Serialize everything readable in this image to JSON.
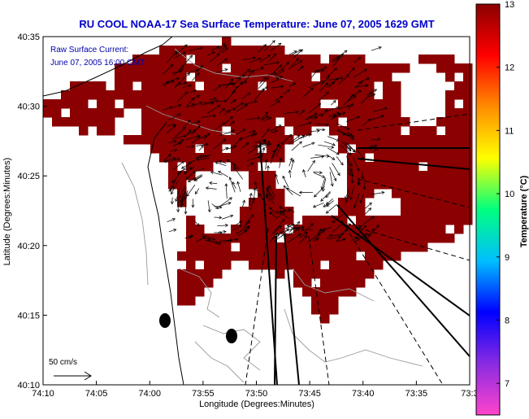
{
  "chart_data": {
    "type": "heatmap",
    "title": "RU COOL  NOAA-17  Sea Surface Temperature:  June 07, 2005 1629 GMT",
    "subtitle_lines": [
      "Raw Surface Current:",
      "June 07, 2005 16:00 GMT"
    ],
    "xlabel": "Longitude (Degrees:Minutes)",
    "ylabel": "Latitude (Degrees:Minutes)",
    "x_ticks": [
      "74:10",
      "74:05",
      "74:00",
      "73:55",
      "73:50",
      "73:45",
      "73:40",
      "73:35",
      "73:3"
    ],
    "y_ticks": [
      "40:35",
      "40:30",
      "40:25",
      "40:20",
      "40:15",
      "40:10"
    ],
    "xlim": [
      -74.1667,
      -73.5
    ],
    "ylim": [
      40.1667,
      40.5833
    ],
    "scale_arrow_label": "50 cm/s",
    "colorbar": {
      "label": "Temperature (°C)",
      "range": [
        6.5,
        13
      ],
      "ticks": [
        "13",
        "12",
        "11",
        "10",
        "9",
        "8",
        "7"
      ],
      "colors": [
        "#ff44cc",
        "#8a2be2",
        "#0000ff",
        "#00bfff",
        "#00ff7f",
        "#ffff00",
        "#ff8c00",
        "#ff0000",
        "#8b0000"
      ]
    },
    "sst_fill_color": "#8b0000",
    "sst_value_degC": 13
  }
}
